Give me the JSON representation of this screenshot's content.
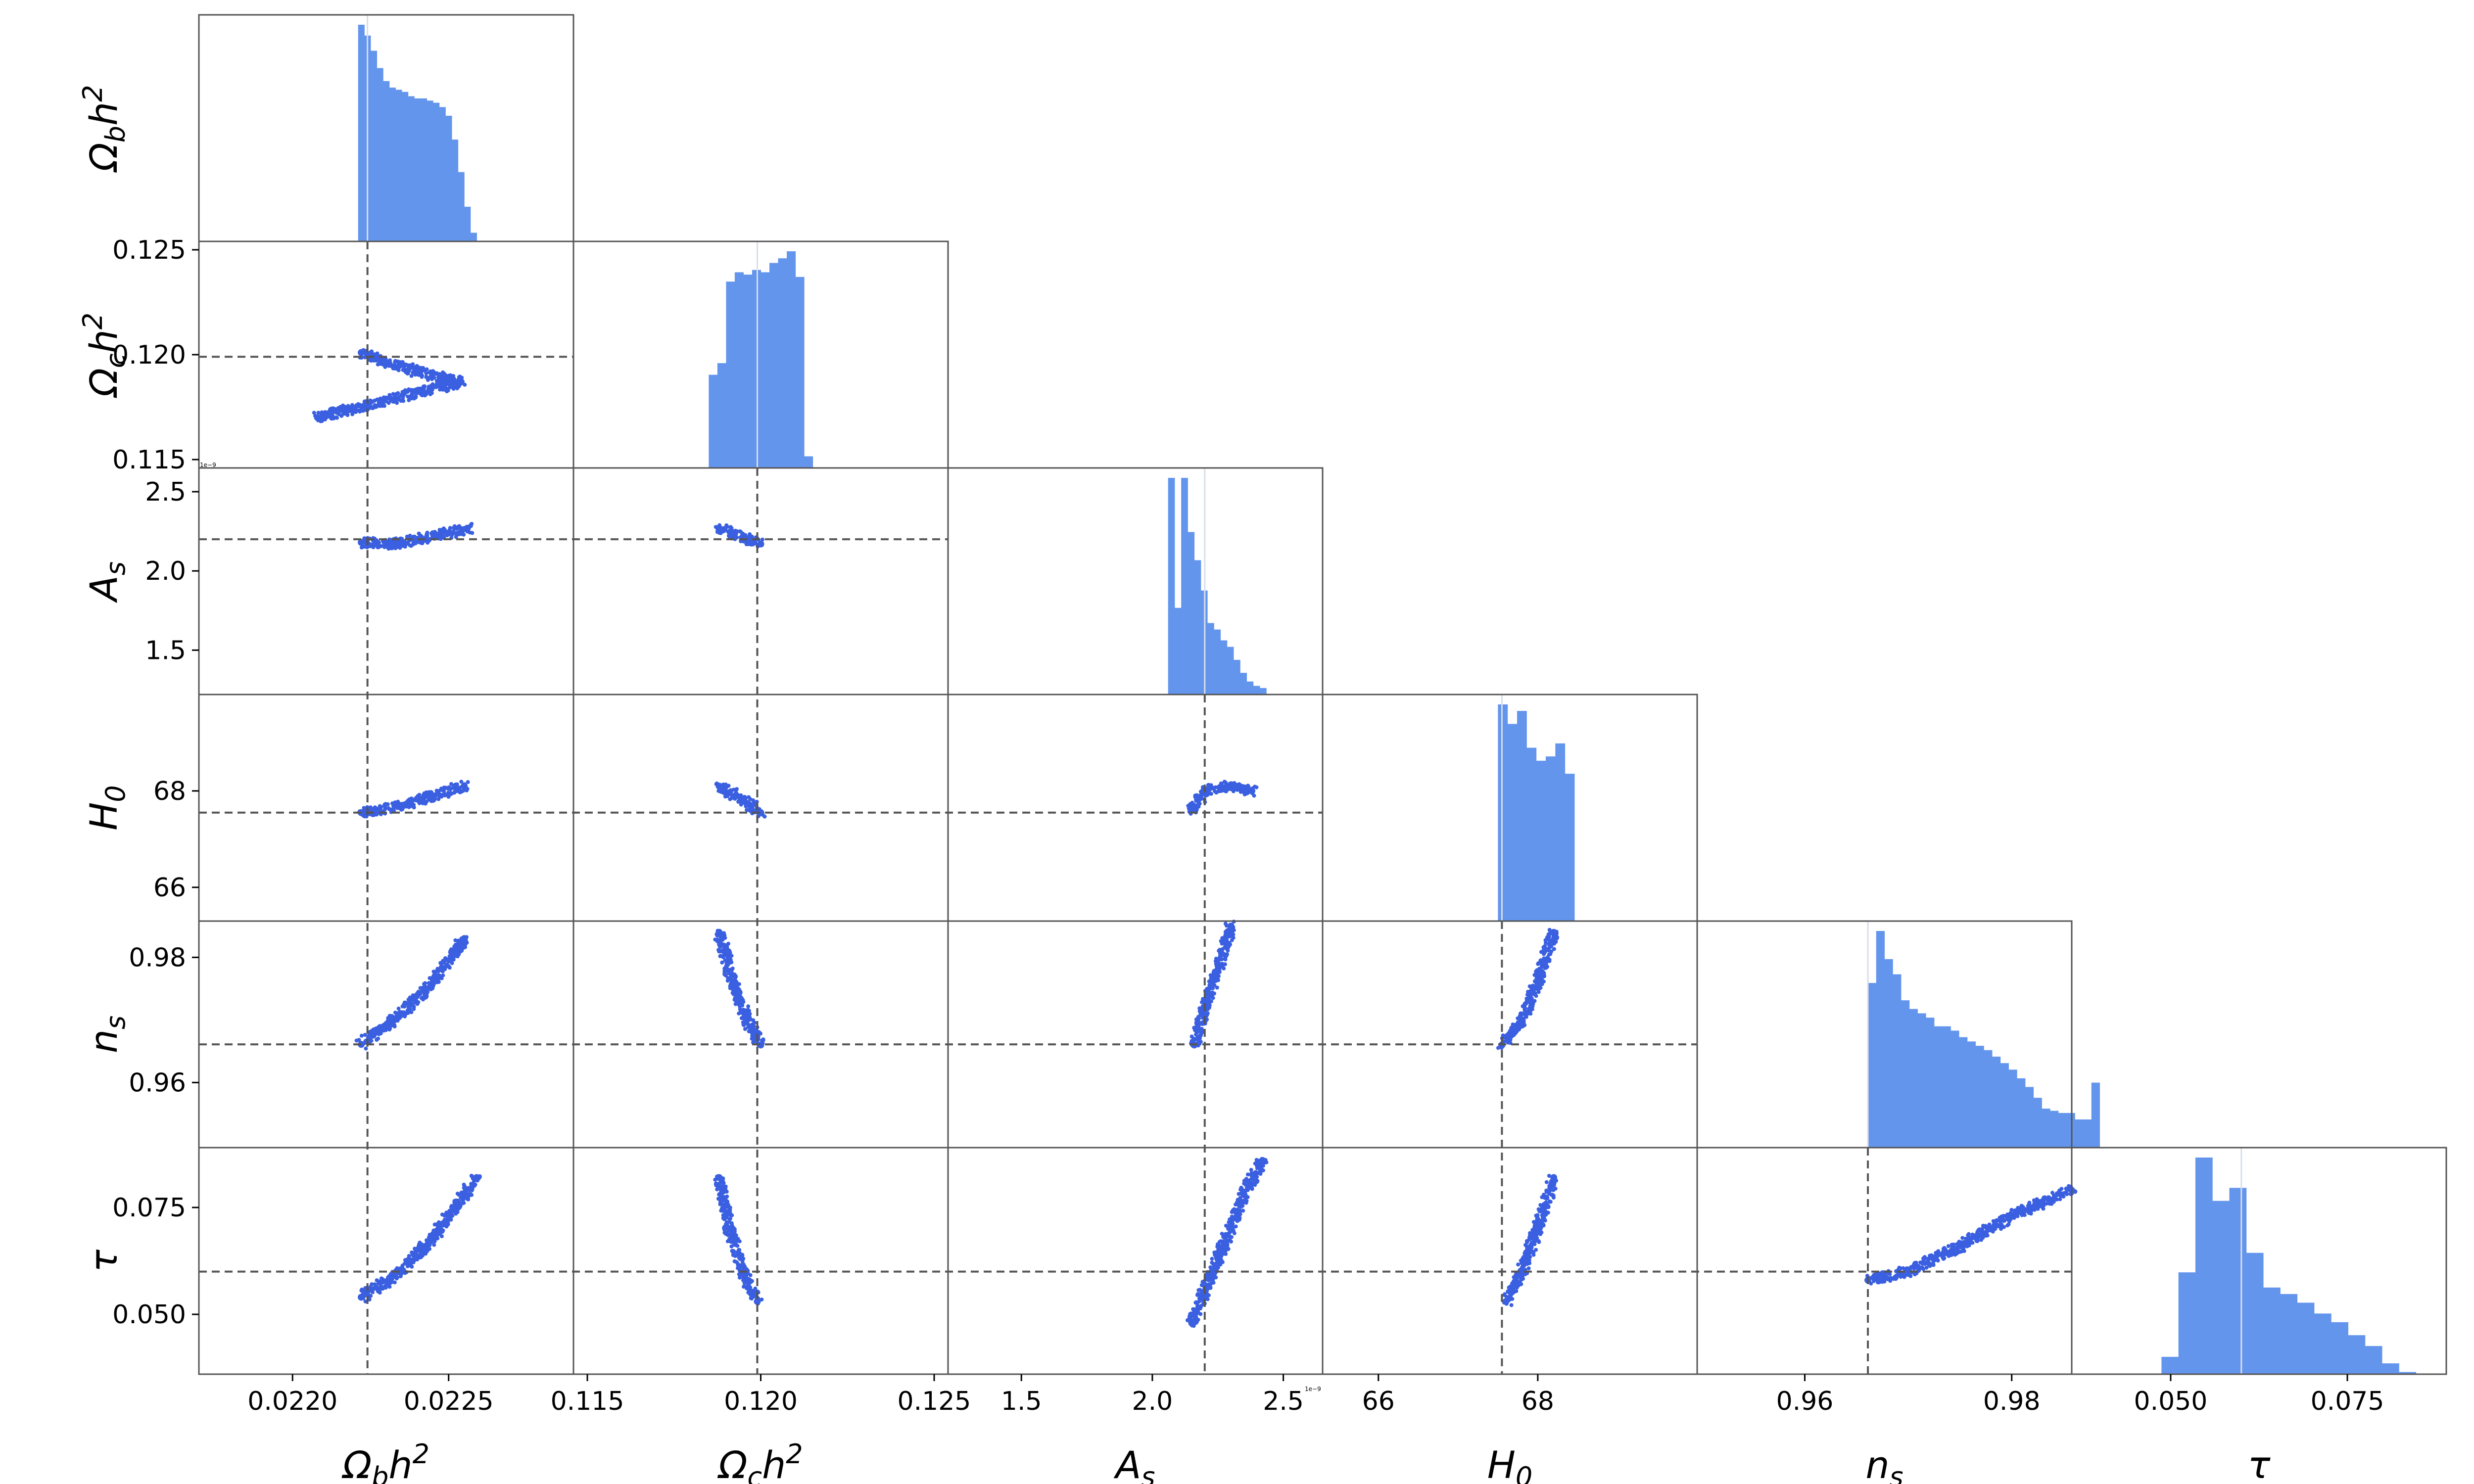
{
  "chart_data": {
    "type": "scatter",
    "layout": "lower-triangular corner plot with 1D histograms on the diagonal",
    "colors": {
      "points": "#3a5fe0",
      "hist": "#6495ed",
      "truth_line": "#555555",
      "frame": "#555555"
    },
    "truth_lines": "dashed",
    "params": [
      {
        "key": "omega_b",
        "label": "Ωbh2",
        "sub": "b",
        "sup": "2",
        "range": [
          0.0217,
          0.0229
        ],
        "ticks": [
          0.022,
          0.0225
        ],
        "tick_labels": [
          "0.0220",
          "0.0225"
        ],
        "truth": 0.02224
      },
      {
        "key": "omega_c",
        "label": "Ωch2",
        "sub": "c",
        "sup": "2",
        "range": [
          0.1146,
          0.1254
        ],
        "ticks": [
          0.115,
          0.12,
          0.125
        ],
        "tick_labels": [
          "0.115",
          "0.120",
          "0.125"
        ],
        "truth": 0.1199
      },
      {
        "key": "A_s",
        "label": "As",
        "sub": "s",
        "sup": "",
        "range": [
          1.22,
          2.65
        ],
        "ticks": [
          1.5,
          2.0,
          2.5
        ],
        "tick_labels": [
          "1.5",
          "2.0",
          "2.5"
        ],
        "truth": 2.2,
        "sci_note": "1e−9"
      },
      {
        "key": "H_0",
        "label": "H0",
        "sub": "0",
        "sup": "",
        "range": [
          65.3,
          70.0
        ],
        "ticks": [
          66,
          68
        ],
        "tick_labels": [
          "66",
          "68"
        ],
        "truth": 67.55
      },
      {
        "key": "n_s",
        "label": "ns",
        "sub": "s",
        "sup": "",
        "range": [
          0.9496,
          0.9858
        ],
        "ticks": [
          0.96,
          0.98
        ],
        "tick_labels": [
          "0.96",
          "0.98"
        ],
        "truth": 0.9661
      },
      {
        "key": "tau",
        "label": "τ",
        "sub": "",
        "sup": "",
        "range": [
          0.036,
          0.089
        ],
        "ticks": [
          0.05,
          0.075
        ],
        "tick_labels": [
          "0.050",
          "0.075"
        ],
        "truth": 0.06
      }
    ],
    "histograms": [
      {
        "param": "omega_b",
        "bin_start": 0.02221,
        "bin_width": 2e-05,
        "counts": [
          100,
          95,
          88,
          80,
          74,
          71,
          70,
          69,
          67,
          66,
          66,
          65,
          64,
          62,
          58,
          47,
          32,
          16,
          4
        ]
      },
      {
        "param": "omega_c",
        "bin_start": 0.1185,
        "bin_width": 0.00025,
        "counts": [
          40,
          45,
          80,
          84,
          83,
          85,
          84,
          88,
          90,
          93,
          82,
          5
        ]
      },
      {
        "param": "A_s",
        "bin_start": 2.06,
        "bin_width": 0.025,
        "counts": [
          100,
          40,
          100,
          75,
          62,
          48,
          33,
          30,
          25,
          22,
          16,
          10,
          6,
          4,
          3
        ]
      },
      {
        "param": "H_0",
        "bin_start": 67.5,
        "bin_width": 0.12,
        "counts": [
          100,
          91,
          97,
          80,
          74,
          76,
          82,
          68
        ]
      },
      {
        "param": "n_s",
        "bin_start": 0.9661,
        "bin_width": 0.0008,
        "counts": [
          76,
          100,
          87,
          80,
          68,
          64,
          62,
          60,
          56,
          56,
          54,
          51,
          49,
          47,
          45,
          42,
          39,
          36,
          32,
          28,
          23,
          18,
          17,
          16,
          16,
          13,
          13,
          30
        ]
      },
      {
        "param": "tau",
        "bin_start": 0.0487,
        "bin_width": 0.0024,
        "counts": [
          8,
          47,
          100,
          80,
          86,
          56,
          40,
          37,
          33,
          28,
          24,
          18,
          13,
          5,
          1
        ]
      }
    ],
    "scatter_pairs": [
      {
        "x": "omega_b",
        "y": "omega_c",
        "points": [
          [
            0.02222,
            0.1201
          ],
          [
            0.0223,
            0.1196
          ],
          [
            0.0224,
            0.1192
          ],
          [
            0.0225,
            0.1188
          ],
          [
            0.02254,
            0.1187
          ],
          [
            0.02208,
            0.117
          ]
        ]
      },
      {
        "x": "omega_b",
        "y": "A_s",
        "points": [
          [
            0.02222,
            2.18
          ],
          [
            0.02232,
            2.17
          ],
          [
            0.0224,
            2.2
          ],
          [
            0.0225,
            2.24
          ],
          [
            0.02256,
            2.27
          ]
        ]
      },
      {
        "x": "omega_b",
        "y": "H_0",
        "points": [
          [
            0.02222,
            67.55
          ],
          [
            0.02235,
            67.7
          ],
          [
            0.02245,
            67.9
          ],
          [
            0.02255,
            68.1
          ]
        ]
      },
      {
        "x": "omega_b",
        "y": "n_s",
        "points": [
          [
            0.02222,
            0.9661
          ],
          [
            0.02235,
            0.971
          ],
          [
            0.02245,
            0.976
          ],
          [
            0.02255,
            0.983
          ]
        ]
      },
      {
        "x": "omega_b",
        "y": "tau",
        "points": [
          [
            0.02222,
            0.054
          ],
          [
            0.02235,
            0.06
          ],
          [
            0.02245,
            0.068
          ],
          [
            0.02255,
            0.078
          ],
          [
            0.02259,
            0.082
          ]
        ]
      },
      {
        "x": "omega_c",
        "y": "A_s",
        "points": [
          [
            0.1188,
            2.27
          ],
          [
            0.1192,
            2.24
          ],
          [
            0.1196,
            2.2
          ],
          [
            0.12,
            2.17
          ]
        ]
      },
      {
        "x": "omega_c",
        "y": "H_0",
        "points": [
          [
            0.1188,
            68.1
          ],
          [
            0.1193,
            67.9
          ],
          [
            0.1197,
            67.7
          ],
          [
            0.12,
            67.55
          ]
        ]
      },
      {
        "x": "omega_c",
        "y": "n_s",
        "points": [
          [
            0.1188,
            0.984
          ],
          [
            0.1192,
            0.976
          ],
          [
            0.1196,
            0.97
          ],
          [
            0.12,
            0.966
          ]
        ]
      },
      {
        "x": "omega_c",
        "y": "tau",
        "points": [
          [
            0.1188,
            0.082
          ],
          [
            0.1191,
            0.07
          ],
          [
            0.1195,
            0.06
          ],
          [
            0.1199,
            0.053
          ]
        ]
      },
      {
        "x": "A_s",
        "y": "H_0",
        "points": [
          [
            2.15,
            67.6
          ],
          [
            2.2,
            68.0
          ],
          [
            2.3,
            68.1
          ],
          [
            2.38,
            68.0
          ]
        ]
      },
      {
        "x": "A_s",
        "y": "n_s",
        "points": [
          [
            2.16,
            0.966
          ],
          [
            2.2,
            0.972
          ],
          [
            2.25,
            0.978
          ],
          [
            2.3,
            0.985
          ]
        ]
      },
      {
        "x": "A_s",
        "y": "tau",
        "points": [
          [
            2.15,
            0.048
          ],
          [
            2.25,
            0.063
          ],
          [
            2.35,
            0.078
          ],
          [
            2.42,
            0.086
          ]
        ]
      },
      {
        "x": "H_0",
        "y": "n_s",
        "points": [
          [
            67.55,
            0.966
          ],
          [
            67.8,
            0.97
          ],
          [
            68.0,
            0.976
          ],
          [
            68.2,
            0.984
          ]
        ]
      },
      {
        "x": "H_0",
        "y": "tau",
        "points": [
          [
            67.6,
            0.053
          ],
          [
            67.8,
            0.06
          ],
          [
            68.0,
            0.07
          ],
          [
            68.2,
            0.082
          ]
        ]
      },
      {
        "x": "n_s",
        "y": "tau",
        "points": [
          [
            0.9661,
            0.058
          ],
          [
            0.97,
            0.06
          ],
          [
            0.975,
            0.066
          ],
          [
            0.98,
            0.073
          ],
          [
            0.9858,
            0.079
          ]
        ]
      }
    ]
  }
}
